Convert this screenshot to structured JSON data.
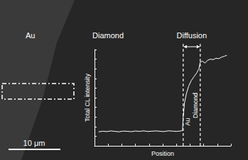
{
  "chart_data": {
    "type": "line",
    "xlabel": "Position",
    "ylabel": "Total CL intensity",
    "x": [
      3,
      6,
      9,
      12,
      15,
      18,
      21,
      24,
      27,
      30,
      33,
      36,
      39,
      42,
      45,
      48,
      51,
      54,
      57,
      60,
      63,
      64.5,
      65,
      66,
      67.5,
      69,
      71,
      73,
      75,
      76.5,
      77.5,
      79,
      81,
      83,
      85,
      87,
      89,
      91,
      93,
      95,
      97
    ],
    "values": [
      14.5,
      15.2,
      14.8,
      15.5,
      15.0,
      14.6,
      15.3,
      15.1,
      14.7,
      15.4,
      15.0,
      15.6,
      14.9,
      15.2,
      15.5,
      15.1,
      14.8,
      15.6,
      15.3,
      15.0,
      15.4,
      16,
      30,
      45,
      55,
      62,
      68,
      72,
      76,
      80,
      87,
      88,
      86,
      89,
      90,
      89.5,
      91,
      90.5,
      92,
      93,
      94
    ],
    "color": "#ffffff",
    "xlim": [
      0,
      100
    ],
    "ylim": [
      0,
      100
    ],
    "xticks": [
      0,
      10,
      20,
      30,
      40,
      50,
      60,
      70,
      80,
      90,
      100
    ],
    "yticks": [
      0,
      10,
      20,
      30,
      40,
      50,
      60,
      70,
      80,
      90,
      100
    ],
    "grid": false,
    "tick_labels": false,
    "interface_lines": [
      65,
      77.5
    ],
    "interface_labels": [
      "Au",
      "Diamond"
    ],
    "diffusion_label": "Diffusion",
    "region_labels": [
      "Au",
      "Diamond"
    ],
    "scale_bar": "10 μm"
  }
}
